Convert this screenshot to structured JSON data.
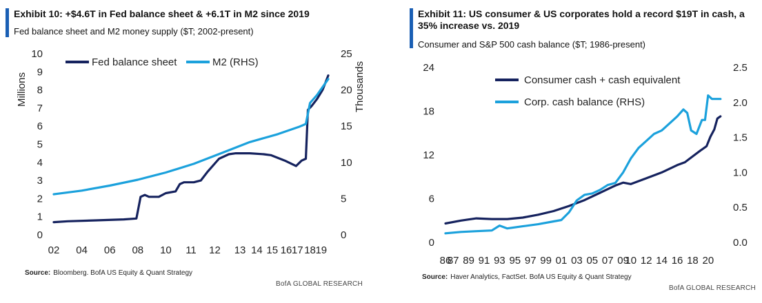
{
  "colors": {
    "navy": "#15225e",
    "light_blue": "#1ba1dc",
    "accent_bar": "#1a5fb4"
  },
  "panels": [
    {
      "title": "Exhibit 10: +$4.6T in Fed balance sheet & +6.1T in M2 since 2019",
      "subtitle": "Fed balance sheet and M2 money supply ($T; 2002-present)",
      "source_label": "Source:",
      "source_text": "Bloomberg. BofA US Equity & Quant Strategy",
      "brand": "BofA GLOBAL RESEARCH"
    },
    {
      "title": "Exhibit 11: US consumer & US corporates hold a record $19T in cash, a 35% increase vs. 2019",
      "subtitle": "Consumer and S&P 500 cash balance ($T; 1986-present)",
      "source_label": "Source:",
      "source_text": "Haver Analytics, FactSet. BofA US Equity & Quant Strategy",
      "brand": "BofA GLOBAL RESEARCH"
    }
  ],
  "chart_data": [
    {
      "type": "line",
      "title": "Exhibit 10: +$4.6T in Fed balance sheet & +6.1T in M2 since 2019",
      "subtitle": "Fed balance sheet and M2 money supply ($T; 2002-present)",
      "ylabel": "Millions",
      "y2label": "Thousands",
      "ylim": [
        0,
        10
      ],
      "y2lim": [
        0,
        25
      ],
      "yticks": [
        "0",
        "1",
        "2",
        "3",
        "4",
        "5",
        "6",
        "7",
        "8",
        "9",
        "10"
      ],
      "y2ticks": [
        "0",
        "5",
        "10",
        "15",
        "20",
        "25"
      ],
      "xlim": [
        2002,
        2021.7
      ],
      "xticks": [
        {
          "value": 2002,
          "label": "02"
        },
        {
          "value": 2004,
          "label": "04"
        },
        {
          "value": 2006,
          "label": "06"
        },
        {
          "value": 2008,
          "label": "08"
        },
        {
          "value": 2010,
          "label": "10"
        },
        {
          "value": 2011.8,
          "label": "11"
        },
        {
          "value": 2013.5,
          "label": "12"
        },
        {
          "value": 2015.3,
          "label": "13"
        },
        {
          "value": 2016.5,
          "label": "14"
        },
        {
          "value": 2017.6,
          "label": "15"
        },
        {
          "value": 2018.6,
          "label": "16"
        },
        {
          "value": 2019.4,
          "label": "17"
        },
        {
          "value": 2020.3,
          "label": "18"
        },
        {
          "value": 2021.1,
          "label": "19"
        }
      ],
      "legend_position": "top",
      "grid": false,
      "series": [
        {
          "name": "Fed balance sheet",
          "color": "#15225e",
          "axis": "left",
          "x": [
            2002,
            2003,
            2005,
            2007,
            2007.9,
            2008.2,
            2008.5,
            2008.8,
            2009.5,
            2010,
            2010.7,
            2011,
            2011.3,
            2012,
            2012.5,
            2013,
            2013.8,
            2014.5,
            2015,
            2016,
            2017,
            2017.5,
            2018.5,
            2019.3,
            2019.7,
            2020.0,
            2020.15,
            2020.4,
            2020.8,
            2021.2,
            2021.6
          ],
          "y": [
            0.7,
            0.75,
            0.8,
            0.85,
            0.9,
            2.1,
            2.2,
            2.1,
            2.1,
            2.3,
            2.4,
            2.8,
            2.9,
            2.9,
            3.0,
            3.5,
            4.2,
            4.45,
            4.5,
            4.5,
            4.45,
            4.4,
            4.1,
            3.8,
            4.1,
            4.2,
            6.9,
            7.1,
            7.5,
            8.0,
            8.8
          ]
        },
        {
          "name": "M2 (RHS)",
          "color": "#1ba1dc",
          "axis": "right",
          "x": [
            2002,
            2004,
            2006,
            2008,
            2010,
            2012,
            2014,
            2016,
            2018,
            2019.5,
            2020.0,
            2020.3,
            2020.8,
            2021.2,
            2021.6
          ],
          "y": [
            5.6,
            6.1,
            6.8,
            7.6,
            8.6,
            9.8,
            11.3,
            12.8,
            13.9,
            14.9,
            15.3,
            18.2,
            19.3,
            20.4,
            21.5
          ]
        }
      ]
    },
    {
      "type": "line",
      "title": "Exhibit 11: US consumer & US corporates hold a record $19T in cash, a 35% increase vs. 2019",
      "subtitle": "Consumer and S&P 500 cash balance ($T; 1986-present)",
      "ylim": [
        0,
        24
      ],
      "y2lim": [
        0,
        2.5
      ],
      "yticks": [
        "0",
        "6",
        "12",
        "18",
        "24"
      ],
      "y2ticks": [
        "0.0",
        "0.5",
        "1.0",
        "1.5",
        "2.0",
        "2.5"
      ],
      "xlim": [
        1986,
        2021.8
      ],
      "xticks": [
        {
          "value": 1986,
          "label": "86"
        },
        {
          "value": 1987,
          "label": "87"
        },
        {
          "value": 1989,
          "label": "89"
        },
        {
          "value": 1991,
          "label": "91"
        },
        {
          "value": 1993,
          "label": "93"
        },
        {
          "value": 1995,
          "label": "95"
        },
        {
          "value": 1997,
          "label": "97"
        },
        {
          "value": 1999,
          "label": "99"
        },
        {
          "value": 2001,
          "label": "01"
        },
        {
          "value": 2003,
          "label": "03"
        },
        {
          "value": 2005,
          "label": "05"
        },
        {
          "value": 2007,
          "label": "07"
        },
        {
          "value": 2009,
          "label": "09"
        },
        {
          "value": 2010,
          "label": "10"
        },
        {
          "value": 2012,
          "label": "12"
        },
        {
          "value": 2014,
          "label": "14"
        },
        {
          "value": 2016,
          "label": "16"
        },
        {
          "value": 2018,
          "label": "18"
        },
        {
          "value": 2020,
          "label": "20"
        }
      ],
      "legend_position": "top",
      "grid": false,
      "series": [
        {
          "name": "Consumer cash + cash equivalent",
          "color": "#15225e",
          "axis": "left",
          "x": [
            1986,
            1988,
            1990,
            1992,
            1994,
            1996,
            1998,
            2000,
            2002,
            2004,
            2006,
            2008,
            2009,
            2010,
            2012,
            2014,
            2016,
            2017,
            2018,
            2019,
            2019.8,
            2020.3,
            2020.8,
            2021.2,
            2021.6
          ],
          "y": [
            2.6,
            3.0,
            3.3,
            3.2,
            3.2,
            3.4,
            3.8,
            4.3,
            5.0,
            5.8,
            6.8,
            7.8,
            8.2,
            8.0,
            8.8,
            9.6,
            10.6,
            11.0,
            11.8,
            12.6,
            13.2,
            14.5,
            15.5,
            17.0,
            17.3
          ]
        },
        {
          "name": "Corp. cash balance (RHS)",
          "color": "#1ba1dc",
          "axis": "right",
          "x": [
            1986,
            1988,
            1990,
            1992,
            1993,
            1994,
            1996,
            1998,
            2000,
            2001,
            2002,
            2003,
            2004,
            2005,
            2006,
            2007,
            2008,
            2009,
            2010,
            2011,
            2012,
            2013,
            2014,
            2015,
            2016,
            2016.8,
            2017.3,
            2017.8,
            2018.5,
            2019.2,
            2019.6,
            2020.0,
            2020.5,
            2021.0,
            2021.6
          ],
          "y": [
            0.13,
            0.15,
            0.16,
            0.17,
            0.24,
            0.2,
            0.23,
            0.26,
            0.3,
            0.32,
            0.43,
            0.6,
            0.68,
            0.7,
            0.75,
            0.82,
            0.85,
            1.0,
            1.2,
            1.35,
            1.45,
            1.55,
            1.6,
            1.7,
            1.8,
            1.9,
            1.85,
            1.6,
            1.55,
            1.75,
            1.75,
            2.1,
            2.05,
            2.05,
            2.05
          ]
        }
      ]
    }
  ]
}
